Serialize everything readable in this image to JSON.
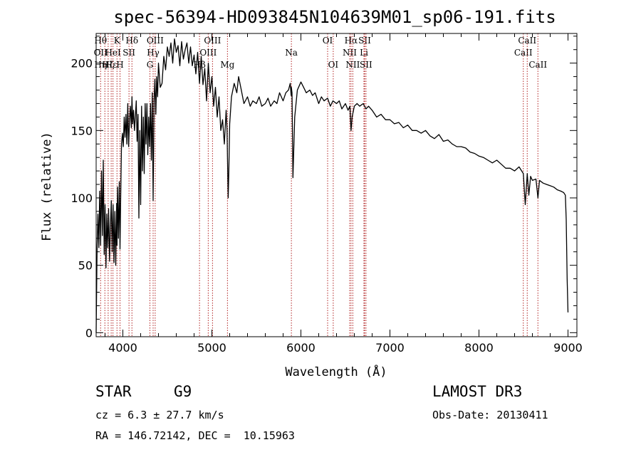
{
  "chart_data": {
    "type": "line",
    "title": "spec-56394-HD093845N104639M01_sp06-191.fits",
    "xlabel": "Wavelength (Å)",
    "ylabel": "Flux (relative)",
    "xlim": [
      3700,
      9100
    ],
    "ylim": [
      -3,
      222
    ],
    "xticks": [
      4000,
      5000,
      6000,
      7000,
      8000,
      9000
    ],
    "yticks": [
      0,
      50,
      100,
      150,
      200
    ],
    "series": [
      {
        "name": "flux",
        "x": [
          3700,
          3710,
          3720,
          3730,
          3740,
          3750,
          3760,
          3770,
          3780,
          3790,
          3800,
          3810,
          3820,
          3830,
          3840,
          3850,
          3860,
          3870,
          3880,
          3890,
          3900,
          3910,
          3920,
          3930,
          3934,
          3940,
          3950,
          3960,
          3968,
          3975,
          3985,
          3995,
          4005,
          4015,
          4025,
          4035,
          4045,
          4055,
          4065,
          4075,
          4085,
          4095,
          4102,
          4110,
          4120,
          4130,
          4140,
          4150,
          4160,
          4170,
          4180,
          4190,
          4200,
          4210,
          4220,
          4230,
          4240,
          4250,
          4260,
          4270,
          4280,
          4290,
          4300,
          4310,
          4320,
          4330,
          4340,
          4350,
          4360,
          4370,
          4380,
          4390,
          4400,
          4420,
          4440,
          4460,
          4480,
          4500,
          4520,
          4540,
          4560,
          4580,
          4600,
          4620,
          4640,
          4660,
          4680,
          4700,
          4720,
          4740,
          4760,
          4780,
          4800,
          4820,
          4840,
          4861,
          4880,
          4900,
          4920,
          4940,
          4960,
          4980,
          5000,
          5020,
          5040,
          5060,
          5080,
          5100,
          5120,
          5140,
          5160,
          5170,
          5175,
          5183,
          5190,
          5200,
          5220,
          5250,
          5280,
          5300,
          5330,
          5360,
          5400,
          5430,
          5460,
          5500,
          5530,
          5560,
          5600,
          5630,
          5660,
          5700,
          5730,
          5760,
          5800,
          5830,
          5860,
          5880,
          5890,
          5893,
          5900,
          5910,
          5930,
          5960,
          6000,
          6030,
          6060,
          6100,
          6130,
          6160,
          6200,
          6230,
          6260,
          6300,
          6330,
          6360,
          6400,
          6430,
          6460,
          6500,
          6530,
          6550,
          6563,
          6575,
          6600,
          6630,
          6660,
          6700,
          6730,
          6760,
          6800,
          6850,
          6900,
          6950,
          7000,
          7050,
          7100,
          7150,
          7200,
          7250,
          7300,
          7350,
          7400,
          7450,
          7500,
          7550,
          7600,
          7650,
          7700,
          7750,
          7800,
          7850,
          7900,
          7950,
          8000,
          8050,
          8100,
          8150,
          8200,
          8250,
          8300,
          8350,
          8400,
          8450,
          8498,
          8520,
          8542,
          8560,
          8580,
          8600,
          8640,
          8662,
          8680,
          8720,
          8760,
          8800,
          8840,
          8880,
          8920,
          8950,
          8970,
          8980,
          8990,
          9000
        ],
        "values": [
          0,
          62,
          88,
          63,
          105,
          65,
          120,
          72,
          128,
          58,
          95,
          48,
          88,
          63,
          92,
          53,
          78,
          98,
          60,
          95,
          52,
          90,
          50,
          96,
          65,
          108,
          70,
          112,
          62,
          98,
          140,
          148,
          138,
          160,
          145,
          162,
          140,
          170,
          138,
          158,
          168,
          152,
          175,
          155,
          165,
          150,
          160,
          172,
          142,
          162,
          85,
          150,
          95,
          168,
          120,
          160,
          118,
          170,
          140,
          170,
          132,
          160,
          138,
          170,
          128,
          178,
          98,
          172,
          188,
          162,
          190,
          175,
          200,
          182,
          185,
          205,
          195,
          212,
          205,
          215,
          200,
          218,
          208,
          213,
          198,
          216,
          203,
          210,
          215,
          200,
          212,
          198,
          206,
          192,
          208,
          185,
          205,
          184,
          196,
          172,
          200,
          178,
          190,
          168,
          182,
          160,
          175,
          150,
          158,
          140,
          165,
          150,
          130,
          100,
          120,
          155,
          175,
          185,
          178,
          190,
          180,
          170,
          175,
          168,
          172,
          170,
          175,
          168,
          170,
          174,
          168,
          172,
          170,
          178,
          172,
          178,
          180,
          185,
          176,
          182,
          178,
          115,
          160,
          180,
          186,
          182,
          178,
          180,
          176,
          178,
          170,
          175,
          172,
          174,
          168,
          172,
          170,
          172,
          166,
          170,
          165,
          168,
          150,
          160,
          168,
          170,
          168,
          170,
          166,
          168,
          165,
          160,
          162,
          158,
          158,
          155,
          156,
          152,
          154,
          150,
          150,
          148,
          150,
          146,
          144,
          147,
          142,
          143,
          140,
          138,
          138,
          137,
          134,
          133,
          131,
          130,
          128,
          126,
          128,
          125,
          122,
          122,
          120,
          123,
          118,
          95,
          118,
          102,
          116,
          113,
          114,
          100,
          113,
          111,
          110,
          109,
          108,
          106,
          105,
          104,
          102,
          84,
          40,
          15
        ]
      }
    ],
    "lines": [
      {
        "w": 3750,
        "a": "Hθ",
        "b": "OII",
        "c": "Hη"
      },
      {
        "w": 3798,
        "a": "",
        "b": "",
        "c": ""
      },
      {
        "w": 3835,
        "a": "",
        "b": "",
        "c": "Hζ"
      },
      {
        "w": 3869,
        "a": "",
        "b": "",
        "c": "Hε"
      },
      {
        "w": 3889,
        "a": "",
        "b": "HeI",
        "c": ""
      },
      {
        "w": 3934,
        "a": "K",
        "b": "",
        "c": ""
      },
      {
        "w": 3968,
        "a": "",
        "b": "",
        "c": "H"
      },
      {
        "w": 4069,
        "a": "",
        "b": "SII",
        "c": ""
      },
      {
        "w": 4102,
        "a": "Hδ",
        "b": "",
        "c": ""
      },
      {
        "w": 4304,
        "a": "",
        "b": "",
        "c": "G"
      },
      {
        "w": 4340,
        "a": "",
        "b": "Hγ",
        "c": ""
      },
      {
        "w": 4363,
        "a": "OIII",
        "b": "",
        "c": ""
      },
      {
        "w": 4861,
        "a": "",
        "b": "",
        "c": "Hβ"
      },
      {
        "w": 4959,
        "a": "",
        "b": "OIII",
        "c": ""
      },
      {
        "w": 5007,
        "a": "OIII",
        "b": "",
        "c": ""
      },
      {
        "w": 5175,
        "a": "",
        "b": "",
        "c": "Mg"
      },
      {
        "w": 5893,
        "a": "",
        "b": "Na",
        "c": ""
      },
      {
        "w": 6300,
        "a": "OI",
        "b": "",
        "c": ""
      },
      {
        "w": 6363,
        "a": "",
        "b": "",
        "c": "OI"
      },
      {
        "w": 6548,
        "a": "",
        "b": "NII",
        "c": ""
      },
      {
        "w": 6563,
        "a": "Hα",
        "b": "",
        "c": ""
      },
      {
        "w": 6583,
        "a": "",
        "b": "",
        "c": "NII"
      },
      {
        "w": 6708,
        "a": "",
        "b": "Li",
        "c": ""
      },
      {
        "w": 6716,
        "a": "SII",
        "b": "",
        "c": ""
      },
      {
        "w": 6731,
        "a": "",
        "b": "",
        "c": "SII"
      },
      {
        "w": 8498,
        "a": "",
        "b": "CaII",
        "c": ""
      },
      {
        "w": 8542,
        "a": "CaII",
        "b": "",
        "c": ""
      },
      {
        "w": 8662,
        "a": "",
        "b": "",
        "c": "CaII"
      }
    ]
  },
  "info": {
    "object_class": "STAR",
    "subclass": "G9",
    "survey": "LAMOST DR3",
    "redshift": "cz = 6.3 ± 27.7 km/s",
    "obs_date": "Obs-Date: 20130411",
    "coords": "RA = 146.72142, DEC =  10.15963"
  }
}
